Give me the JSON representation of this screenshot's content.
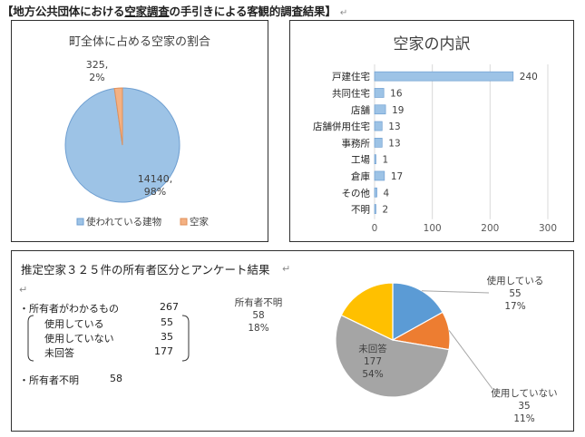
{
  "header": {
    "title_pre": "【地方公共団体における",
    "title_u": "空家調査",
    "title_post": "の手引きによる客観的調査結果】",
    "para_mark": "↵"
  },
  "pie1": {
    "title": "町全体に占める空家の割合",
    "colors": [
      "#9dc3e6",
      "#f4b183"
    ],
    "outline": [
      "#6f9fd1",
      "#e0905a"
    ],
    "slices": [
      {
        "name": "使われている建物",
        "value": 14140,
        "label_value": "14140,",
        "label_pct": "98%"
      },
      {
        "name": "空家",
        "value": 325,
        "label_value": "325,",
        "label_pct": "2%"
      }
    ],
    "legend_placement": "bottom"
  },
  "bar1": {
    "title": "空家の内訳",
    "color": "#9dc3e6",
    "categories": [
      "戸建住宅",
      "共同住宅",
      "店舗",
      "店舗併用住宅",
      "事務所",
      "工場",
      "倉庫",
      "その他",
      "不明"
    ],
    "values": [
      240,
      16,
      19,
      13,
      13,
      1,
      17,
      4,
      2
    ],
    "data_labels": [
      "240",
      "16",
      "19",
      "13",
      "13",
      "1",
      "17",
      "4",
      "2"
    ],
    "xticks": [
      0,
      100,
      200,
      300
    ],
    "xtick_labels": [
      "0",
      "100",
      "200",
      "300"
    ],
    "xlim": [
      0,
      300
    ]
  },
  "panel3": {
    "title": "推定空家３２５件の所有者区分とアンケート結果",
    "lines": [
      {
        "label": "・所有者がわかるもの",
        "value": "267"
      },
      {
        "label": "使用している",
        "value": "55"
      },
      {
        "label": "使用していない",
        "value": "35"
      },
      {
        "label": "未回答",
        "value": "177"
      },
      {
        "label": "・所有者不明",
        "value": "58"
      }
    ]
  },
  "pie2": {
    "colors": [
      "#5b9bd5",
      "#ed7d31",
      "#a5a5a5",
      "#ffc000"
    ],
    "slices": [
      {
        "name": "使用している",
        "value": 55,
        "pct": "17%"
      },
      {
        "name": "使用していない",
        "value": 35,
        "pct": "11%"
      },
      {
        "name": "未回答",
        "value": 177,
        "pct": "54%"
      },
      {
        "name": "所有者不明",
        "value": 58,
        "pct": "18%"
      }
    ]
  },
  "chart_data": [
    {
      "type": "pie",
      "title": "町全体に占める空家の割合",
      "categories": [
        "使われている建物",
        "空家"
      ],
      "values": [
        14140,
        325
      ],
      "percent_labels": [
        "98%",
        "2%"
      ],
      "legend": "bottom"
    },
    {
      "type": "bar",
      "orientation": "horizontal",
      "title": "空家の内訳",
      "categories": [
        "戸建住宅",
        "共同住宅",
        "店舗",
        "店舗併用住宅",
        "事務所",
        "工場",
        "倉庫",
        "その他",
        "不明"
      ],
      "values": [
        240,
        16,
        19,
        13,
        13,
        1,
        17,
        4,
        2
      ],
      "xlim": [
        0,
        300
      ],
      "grid": true
    },
    {
      "type": "pie",
      "categories": [
        "使用している",
        "使用していない",
        "未回答",
        "所有者不明"
      ],
      "values": [
        55,
        35,
        177,
        58
      ],
      "percent_labels": [
        "17%",
        "11%",
        "54%",
        "18%"
      ]
    }
  ]
}
